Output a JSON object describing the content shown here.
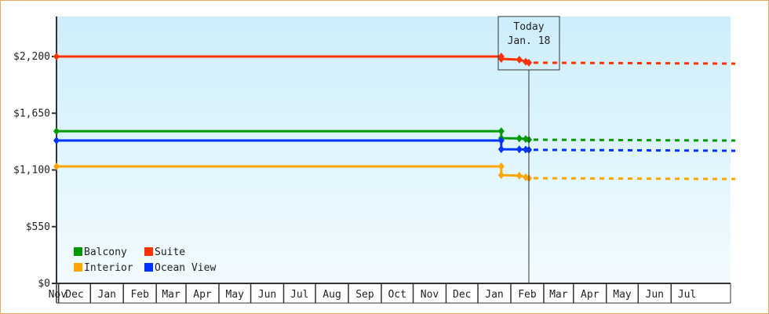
{
  "chart_data": {
    "type": "line",
    "title": "",
    "xlabel": "",
    "ylabel": "",
    "x_range": [
      "2017-10-30",
      "2019-07-27"
    ],
    "ylim": [
      0,
      2600
    ],
    "y_ticks": [
      0,
      550,
      1100,
      1650,
      2200
    ],
    "y_tick_labels": [
      "$0",
      "$550",
      "$1,100",
      "$1,650",
      "$2,200"
    ],
    "month_labels": [
      "Nov",
      "Dec",
      "Jan",
      "Feb",
      "Mar",
      "Apr",
      "May",
      "Jun",
      "Jul",
      "Aug",
      "Sep",
      "Oct",
      "Nov",
      "Dec",
      "Jan",
      "Feb",
      "Mar",
      "Apr",
      "May",
      "Jun",
      "Jul"
    ],
    "grid": false,
    "legend_placement": "bottom-left",
    "today": {
      "date": "2019-01-18",
      "label_line1": "Today",
      "label_line2": "Jan. 18"
    },
    "series": [
      {
        "name": "Balcony",
        "color": "#009900",
        "points": [
          [
            "2017-10-30",
            1476
          ],
          [
            "2018-12-23",
            1476
          ],
          [
            "2018-12-23",
            1408
          ],
          [
            "2019-01-09",
            1405
          ],
          [
            "2019-01-15",
            1400
          ],
          [
            "2019-01-18",
            1393
          ]
        ],
        "forecast": [
          [
            "2019-01-18",
            1393
          ],
          [
            "2019-07-27",
            1385
          ]
        ]
      },
      {
        "name": "Suite",
        "color": "#ff3300",
        "points": [
          [
            "2017-10-30",
            2200
          ],
          [
            "2018-12-23",
            2200
          ],
          [
            "2018-12-23",
            2177
          ],
          [
            "2019-01-09",
            2170
          ],
          [
            "2019-01-15",
            2150
          ],
          [
            "2019-01-18",
            2140
          ]
        ],
        "forecast": [
          [
            "2019-01-18",
            2140
          ],
          [
            "2019-07-27",
            2131
          ]
        ]
      },
      {
        "name": "Interior",
        "color": "#ffa500",
        "points": [
          [
            "2017-10-30",
            1134
          ],
          [
            "2018-12-23",
            1134
          ],
          [
            "2018-12-23",
            1050
          ],
          [
            "2019-01-09",
            1045
          ],
          [
            "2019-01-15",
            1030
          ],
          [
            "2019-01-18",
            1020
          ]
        ],
        "forecast": [
          [
            "2019-01-18",
            1020
          ],
          [
            "2019-07-27",
            1012
          ]
        ]
      },
      {
        "name": "Ocean View",
        "color": "#0033ff",
        "points": [
          [
            "2017-10-30",
            1385
          ],
          [
            "2018-12-23",
            1385
          ],
          [
            "2018-12-23",
            1301
          ],
          [
            "2019-01-09",
            1300
          ],
          [
            "2019-01-15",
            1298
          ],
          [
            "2019-01-18",
            1295
          ]
        ],
        "forecast": [
          [
            "2019-01-18",
            1295
          ],
          [
            "2019-07-27",
            1286
          ]
        ]
      }
    ]
  }
}
